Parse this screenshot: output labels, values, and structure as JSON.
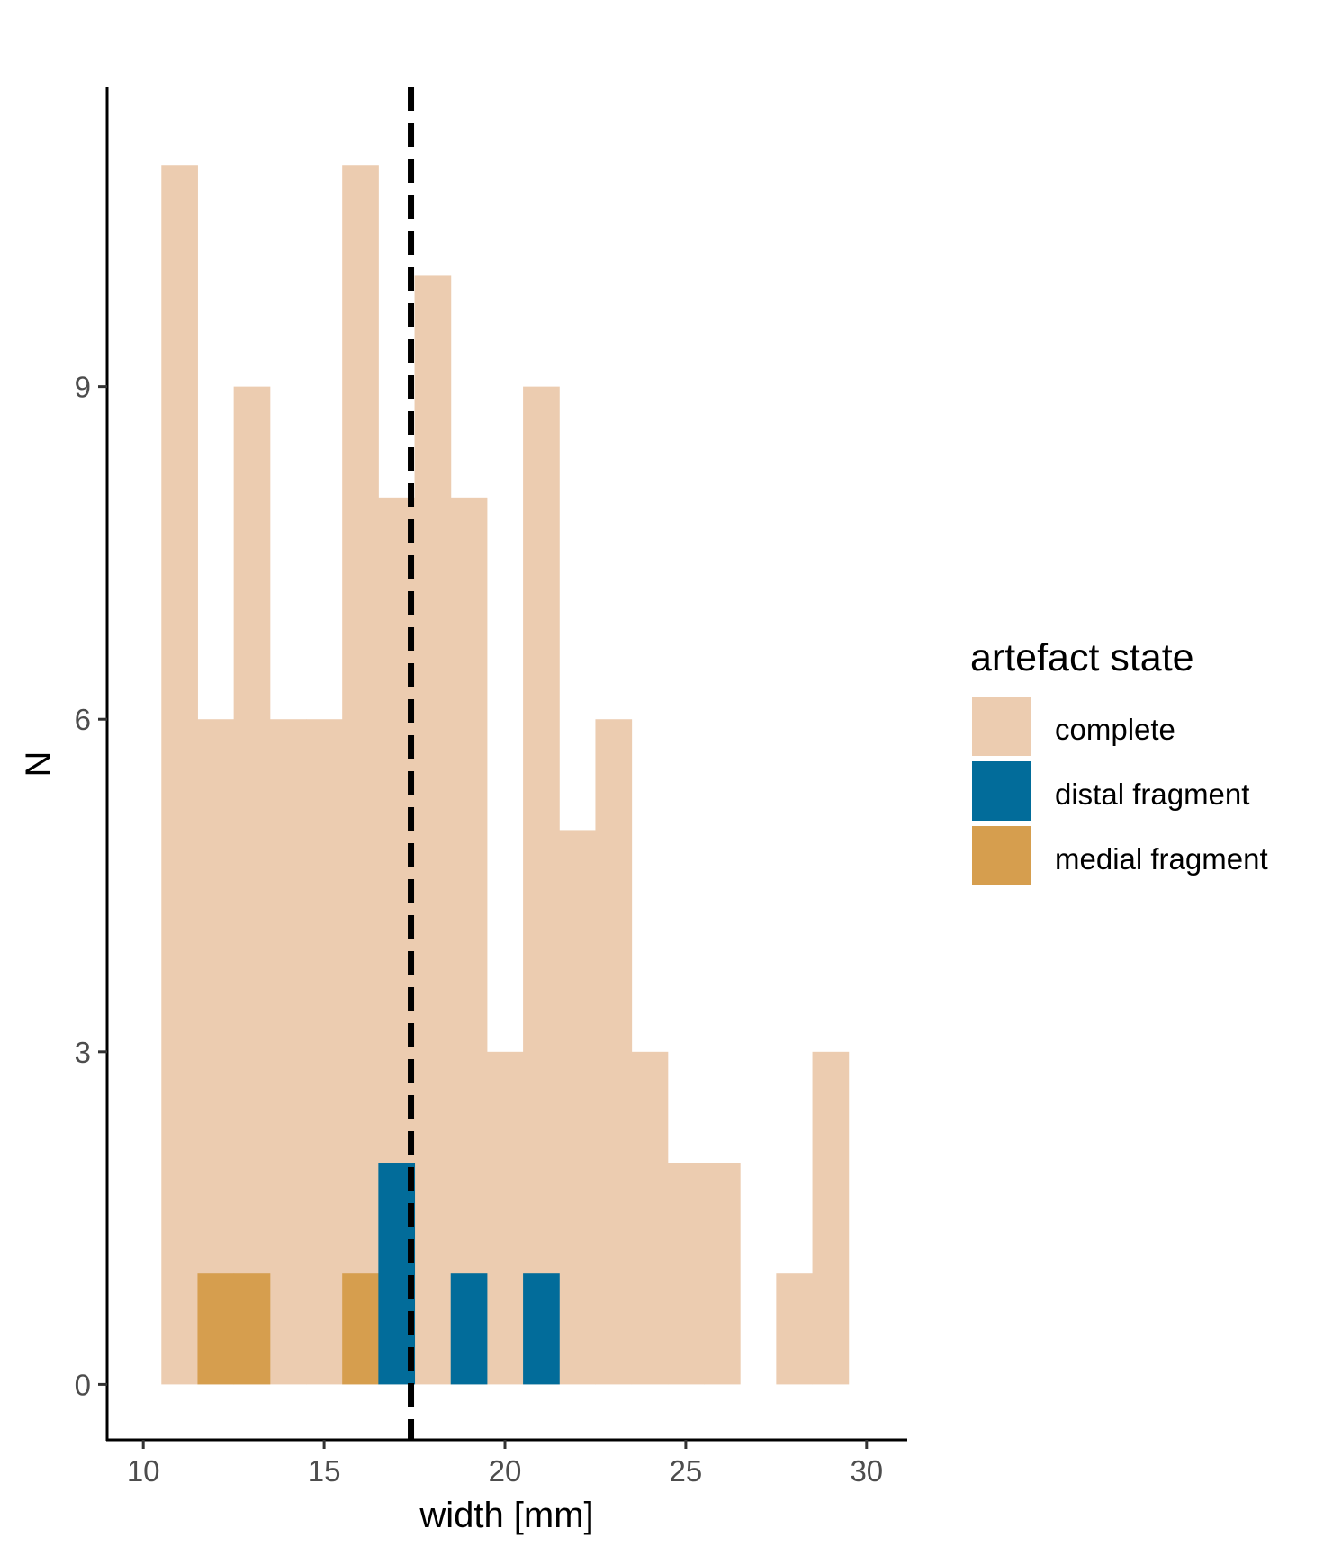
{
  "chart_data": {
    "type": "bar",
    "subtype": "overlaid-histogram",
    "xlabel": "width [mm]",
    "ylabel": "N",
    "xlim": [
      9,
      31
    ],
    "ylim": [
      -0.5,
      11.7
    ],
    "x_ticks": [
      10,
      15,
      20,
      25,
      30
    ],
    "y_ticks": [
      0,
      3,
      6,
      9
    ],
    "bin_width": 1,
    "reference_line": {
      "x": 17.4,
      "style": "dashed",
      "color": "#000000"
    },
    "grid": false,
    "legend": {
      "title": "artefact state",
      "position": "right",
      "entries": [
        {
          "label": "complete",
          "color": "#ECCCB0"
        },
        {
          "label": "distal fragment",
          "color": "#026C9A"
        },
        {
          "label": "medial fragment",
          "color": "#D69E4E"
        }
      ]
    },
    "series": [
      {
        "name": "complete",
        "color": "#ECCCB0",
        "bins": [
          {
            "x": 11,
            "count": 11
          },
          {
            "x": 12,
            "count": 6
          },
          {
            "x": 13,
            "count": 9
          },
          {
            "x": 14,
            "count": 6
          },
          {
            "x": 15,
            "count": 6
          },
          {
            "x": 16,
            "count": 11
          },
          {
            "x": 17,
            "count": 8
          },
          {
            "x": 18,
            "count": 10
          },
          {
            "x": 19,
            "count": 8
          },
          {
            "x": 20,
            "count": 3
          },
          {
            "x": 21,
            "count": 9
          },
          {
            "x": 22,
            "count": 5
          },
          {
            "x": 23,
            "count": 6
          },
          {
            "x": 24,
            "count": 3
          },
          {
            "x": 25,
            "count": 2
          },
          {
            "x": 26,
            "count": 2
          },
          {
            "x": 27,
            "count": 0
          },
          {
            "x": 28,
            "count": 1
          },
          {
            "x": 29,
            "count": 3
          }
        ]
      },
      {
        "name": "medial fragment",
        "color": "#D69E4E",
        "bins": [
          {
            "x": 12,
            "count": 1
          },
          {
            "x": 13,
            "count": 1
          },
          {
            "x": 16,
            "count": 1
          }
        ]
      },
      {
        "name": "distal fragment",
        "color": "#026C9A",
        "bins": [
          {
            "x": 17,
            "count": 2
          },
          {
            "x": 19,
            "count": 1
          },
          {
            "x": 21,
            "count": 1
          }
        ]
      }
    ]
  }
}
